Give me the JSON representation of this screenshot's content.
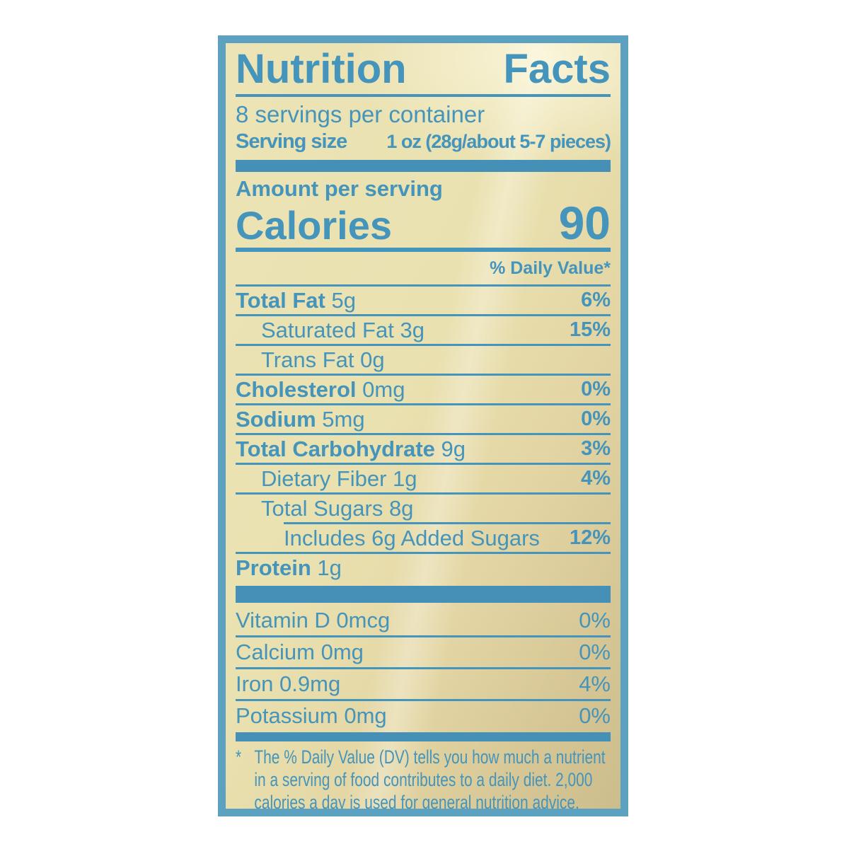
{
  "label": {
    "title": "Nutrition Facts",
    "servings_per_container": "8 servings per container",
    "serving_size_label": "Serving size",
    "serving_size_value": "1 oz (28g/about 5-7 pieces)",
    "amount_per_serving": "Amount per serving",
    "calories_label": "Calories",
    "calories_value": "90",
    "daily_value_header": "% Daily Value*",
    "nutrients": [
      {
        "name": "Total Fat",
        "amount": "5g",
        "dv": "6%",
        "bold": true,
        "indent": 0,
        "divider": "full"
      },
      {
        "name": "Saturated Fat",
        "amount": "3g",
        "dv": "15%",
        "bold": false,
        "indent": 1,
        "divider": "full"
      },
      {
        "name": "Trans Fat",
        "amount": "0g",
        "dv": "",
        "bold": false,
        "indent": 1,
        "divider": "full"
      },
      {
        "name": "Cholesterol",
        "amount": "0mg",
        "dv": "0%",
        "bold": true,
        "indent": 0,
        "divider": "full"
      },
      {
        "name": "Sodium",
        "amount": "5mg",
        "dv": "0%",
        "bold": true,
        "indent": 0,
        "divider": "full"
      },
      {
        "name": "Total Carbohydrate",
        "amount": "9g",
        "dv": "3%",
        "bold": true,
        "indent": 0,
        "divider": "full"
      },
      {
        "name": "Dietary Fiber",
        "amount": "1g",
        "dv": "4%",
        "bold": false,
        "indent": 1,
        "divider": "full"
      },
      {
        "name": "Total Sugars",
        "amount": "8g",
        "dv": "",
        "bold": false,
        "indent": 1,
        "divider": "indent"
      },
      {
        "name": "Includes 6g Added Sugars",
        "amount": "",
        "dv": "12%",
        "bold": false,
        "indent": 2,
        "divider": "full"
      },
      {
        "name": "Protein",
        "amount": "1g",
        "dv": "",
        "bold": true,
        "indent": 0,
        "divider": "none"
      }
    ],
    "micronutrients": [
      {
        "name": "Vitamin D",
        "amount": "0mcg",
        "dv": "0%",
        "divider": "full"
      },
      {
        "name": "Calcium",
        "amount": "0mg",
        "dv": "0%",
        "divider": "full"
      },
      {
        "name": "Iron",
        "amount": "0.9mg",
        "dv": "4%",
        "divider": "full"
      },
      {
        "name": "Potassium",
        "amount": "0mg",
        "dv": "0%",
        "divider": "none"
      }
    ],
    "footnote_marker": "*",
    "footnote": "The % Daily Value (DV) tells you how much a nutrient in a serving of food contributes to a daily diet. 2,000 calories a day is used for general nutrition advice.",
    "colors": {
      "text_blue": "#4494bb",
      "bar_blue": "#4590b6",
      "border_blue": "#5ca1c0",
      "background_cream": "#ece4b6",
      "background_tan": "#ccbd8c",
      "page_background": "#ffffff"
    }
  }
}
